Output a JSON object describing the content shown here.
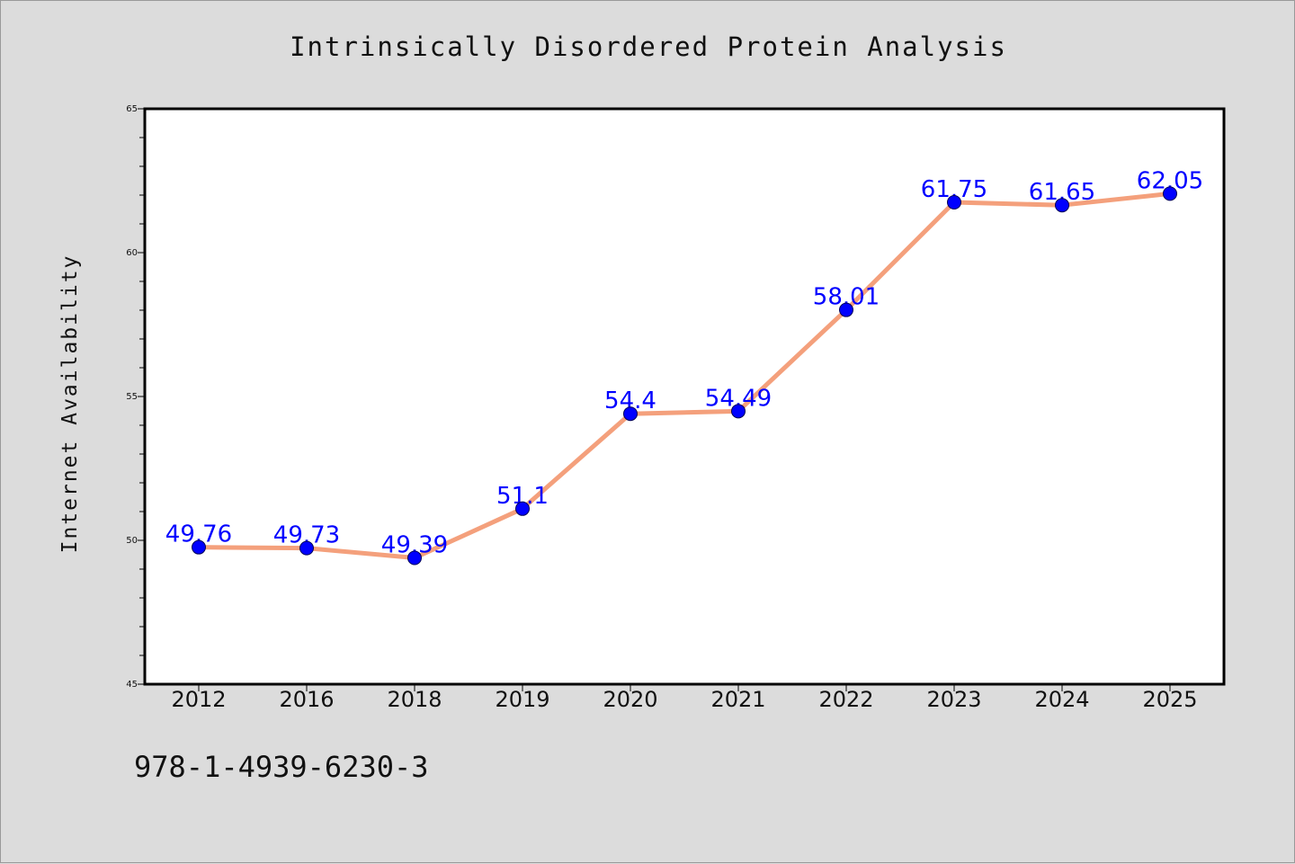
{
  "chart_data": {
    "type": "line",
    "title": "Intrinsically Disordered Protein Analysis",
    "xlabel": "",
    "ylabel": "Internet Availability",
    "categories": [
      "2012",
      "2016",
      "2018",
      "2019",
      "2020",
      "2021",
      "2022",
      "2023",
      "2024",
      "2025"
    ],
    "series": [
      {
        "values": [
          49.76,
          49.73,
          49.39,
          51.1,
          54.4,
          54.49,
          58.01,
          61.75,
          61.65,
          62.05
        ],
        "data_labels": [
          "49.76",
          "49.73",
          "49.39",
          "51.1",
          "54.4",
          "54.49",
          "58.01",
          "61.75",
          "61.65",
          "62.05"
        ],
        "line_color": "#f4a07c",
        "marker_color": "#0000ff"
      }
    ],
    "ylim": [
      45,
      65
    ],
    "yticks": [
      45,
      50,
      55,
      60,
      65
    ],
    "grid": false,
    "legend": "none",
    "annotation_text": "978-1-4939-6230-3",
    "colors": {
      "background": "#dcdcdc",
      "plot_background": "#ffffff",
      "label": "#0000ff"
    }
  }
}
